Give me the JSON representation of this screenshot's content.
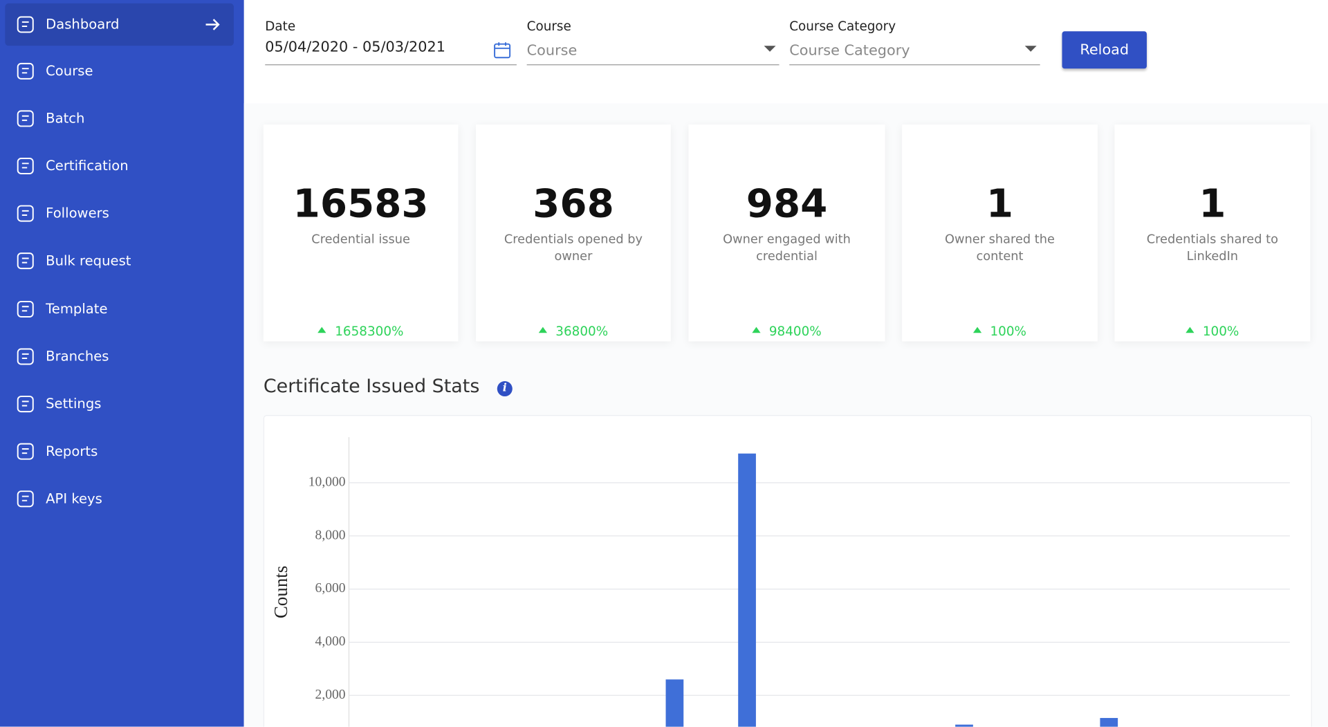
{
  "sidebar": {
    "items": [
      "Dashboard",
      "Course",
      "Batch",
      "Certification",
      "Followers",
      "Bulk request",
      "Template",
      "Branches",
      "Settings",
      "Reports",
      "API keys"
    ]
  },
  "filters": {
    "date": {
      "label": "Date",
      "value": "05/04/2020 - 05/03/2021"
    },
    "course": {
      "label": "Course",
      "placeholder": "Course"
    },
    "category": {
      "label": "Course Category",
      "placeholder": "Course Category"
    },
    "button": "Reload"
  },
  "cards": [
    {
      "value": "16583",
      "label": "Credential issue",
      "change": "1658300%"
    },
    {
      "value": "368",
      "label": "Credentials opened by owner",
      "change": "36800%"
    },
    {
      "value": "984",
      "label": "Owner engaged with credential",
      "change": "98400%"
    },
    {
      "value": "1",
      "label": "Owner shared the content",
      "change": "100%"
    },
    {
      "value": "1",
      "label": "Credentials shared to LinkedIn",
      "change": "100%"
    }
  ],
  "section_title": "Certificate Issued Stats",
  "chart_data": {
    "type": "bar",
    "y_label": "Counts",
    "categories": [
      null,
      null,
      null,
      null,
      null,
      null,
      null,
      null,
      null,
      null,
      null,
      null,
      null
    ],
    "values": [
      0,
      0,
      0,
      0,
      2600,
      11100,
      0,
      0,
      900,
      0,
      1150,
      0,
      0
    ],
    "color": "#3f6fd8",
    "ylim": [
      0,
      11720
    ],
    "yticks": [
      {
        "value": 2000,
        "label": "2,000"
      },
      {
        "value": 4000,
        "label": "4,000"
      },
      {
        "value": 6000,
        "label": "6,000"
      },
      {
        "value": 8000,
        "label": "8,000"
      },
      {
        "value": 10000,
        "label": "10,000"
      }
    ],
    "grid": true
  }
}
